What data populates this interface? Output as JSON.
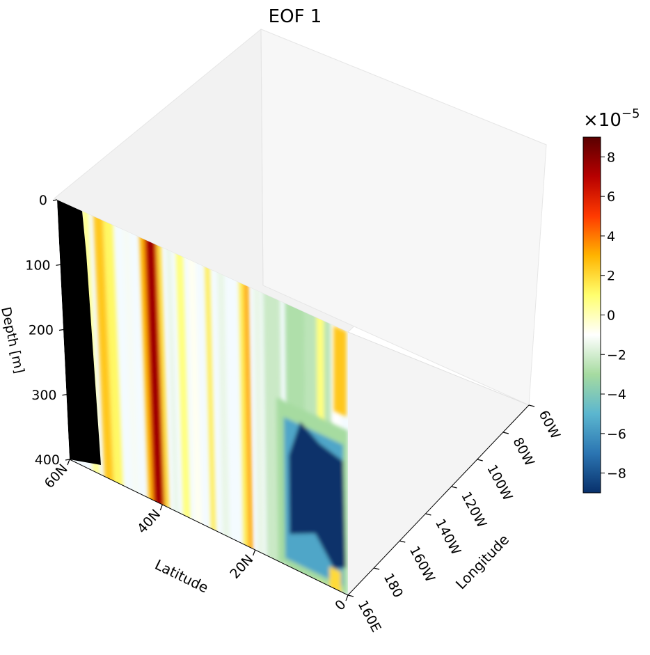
{
  "chart_data": {
    "type": "contourf-3d-section",
    "title": "EOF 1",
    "xlabel": "Latitude",
    "ylabel": "Longitude",
    "zlabel": "Depth [m]",
    "latitude_ticks": [
      "60N",
      "40N",
      "20N",
      "0"
    ],
    "latitude_tick_values": [
      60,
      40,
      20,
      0
    ],
    "longitude_ticks": [
      "160E",
      "180",
      "160W",
      "140W",
      "120W",
      "100W",
      "80W",
      "60W"
    ],
    "longitude_tick_values": [
      160,
      180,
      200,
      220,
      240,
      260,
      280,
      300
    ],
    "depth_ticks": [
      "0",
      "100",
      "200",
      "300",
      "400"
    ],
    "depth_tick_values": [
      0,
      100,
      200,
      300,
      400
    ],
    "colorbar": {
      "multiplier": "×10",
      "exponent": "−5",
      "ticks": [
        "8",
        "6",
        "4",
        "2",
        "0",
        "−2",
        "−4",
        "−6",
        "−8"
      ],
      "tick_values": [
        8,
        6,
        4,
        2,
        0,
        -2,
        -4,
        -6,
        -8
      ],
      "range": [
        -9,
        9
      ],
      "colormap": "RdYlBu_r-like",
      "stops": [
        "#08306b",
        "#2b75b2",
        "#5bb6cf",
        "#a6dba0",
        "#ffffff",
        "#ffff6e",
        "#ffb400",
        "#ff3a00",
        "#b70000",
        "#5a0000"
      ]
    },
    "features": [
      {
        "name": "land-mask",
        "lat_range": [
          55,
          60
        ],
        "value": null,
        "color": "#000000"
      },
      {
        "name": "positive-band",
        "lat_center": 40,
        "value": 6
      },
      {
        "name": "negative-core",
        "lat_range": [
          3,
          13
        ],
        "depth_range": [
          170,
          370
        ],
        "value": -9
      }
    ]
  }
}
